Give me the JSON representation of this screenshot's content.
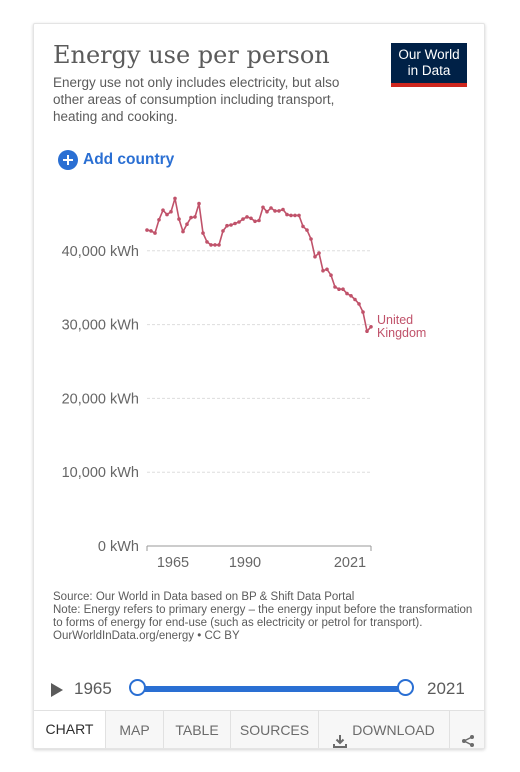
{
  "header": {
    "title": "Energy use per person",
    "subtitle": "Energy use not only includes electricity, but also other areas of consumption including transport, heating and cooking.",
    "logo_line1": "Our World",
    "logo_line2": "in Data"
  },
  "add_country_label": "Add country",
  "colors": {
    "series": "#c0526a",
    "accent": "#2a6fd3",
    "logo_bg": "#002147",
    "logo_bar": "#ce261e"
  },
  "chart_data": {
    "type": "line",
    "title": "Energy use per person",
    "x_ticks": [
      "1965",
      "1990",
      "2021"
    ],
    "y_ticks": [
      "0 kWh",
      "10,000 kWh",
      "20,000 kWh",
      "30,000 kWh",
      "40,000 kWh"
    ],
    "y_tick_values": [
      0,
      10000,
      20000,
      30000,
      40000
    ],
    "ylim": [
      0,
      50000
    ],
    "xlim": [
      1965,
      2021
    ],
    "grid": true,
    "series": [
      {
        "name": "United Kingdom",
        "label_line1": "United",
        "label_line2": "Kingdom",
        "x": [
          1965,
          1966,
          1967,
          1968,
          1969,
          1970,
          1971,
          1972,
          1973,
          1974,
          1975,
          1976,
          1977,
          1978,
          1979,
          1980,
          1981,
          1982,
          1983,
          1984,
          1985,
          1986,
          1987,
          1988,
          1989,
          1990,
          1991,
          1992,
          1993,
          1994,
          1995,
          1996,
          1997,
          1998,
          1999,
          2000,
          2001,
          2002,
          2003,
          2004,
          2005,
          2006,
          2007,
          2008,
          2009,
          2010,
          2011,
          2012,
          2013,
          2014,
          2015,
          2016,
          2017,
          2018,
          2019,
          2020,
          2021
        ],
        "y": [
          42800,
          42700,
          42400,
          44200,
          45500,
          44900,
          45300,
          47100,
          44300,
          42600,
          43600,
          44500,
          44600,
          46400,
          42400,
          41200,
          40800,
          40800,
          40800,
          42700,
          43400,
          43500,
          43700,
          43900,
          44300,
          44600,
          44400,
          44000,
          44100,
          45900,
          45300,
          45800,
          45400,
          45400,
          45600,
          44900,
          44800,
          44800,
          44800,
          43300,
          42800,
          41600,
          39200,
          39700,
          37300,
          37500,
          36700,
          35100,
          34800,
          34800,
          34200,
          33900,
          33400,
          32800,
          31700,
          29100,
          29700
        ]
      }
    ]
  },
  "footer": {
    "source": "Source: Our World in Data based on BP & Shift Data Portal",
    "note": "Note: Energy refers to primary energy – the energy input before the transformation to forms of energy for end-use (such as electricity or petrol for transport).",
    "url": "OurWorldInData.org/energy • CC BY"
  },
  "timeline": {
    "start": "1965",
    "end": "2021"
  },
  "tabs": {
    "chart": "CHART",
    "map": "MAP",
    "table": "TABLE",
    "sources": "SOURCES",
    "download": "DOWNLOAD"
  }
}
